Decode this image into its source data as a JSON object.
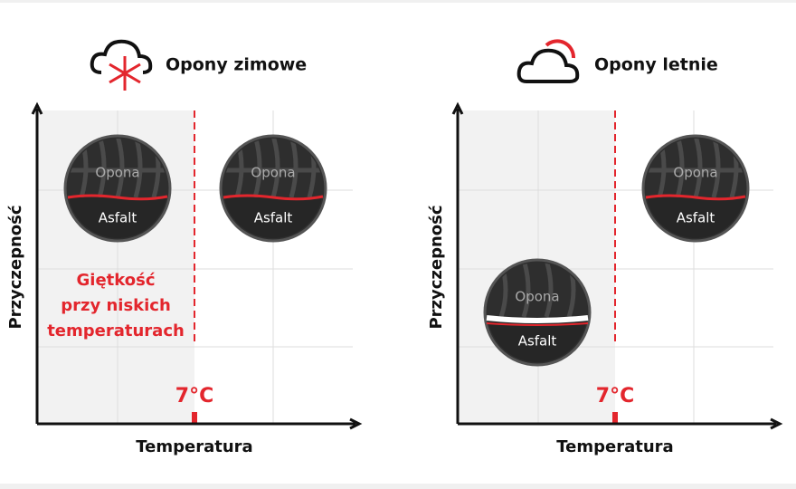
{
  "panels": [
    {
      "title": "Opony zimowe",
      "y_label": "Przyczepność",
      "x_label": "Temperatura",
      "threshold": "7°C",
      "note": [
        "Giętkość",
        "przy niskich",
        "temperaturach"
      ],
      "tires": [
        {
          "top": "Opona",
          "bottom": "Asfalt"
        },
        {
          "top": "Opona",
          "bottom": "Asfalt"
        }
      ]
    },
    {
      "title": "Opony letnie",
      "y_label": "Przyczepność",
      "x_label": "Temperatura",
      "threshold": "7°C",
      "tires": [
        {
          "top": "Opona",
          "bottom": "Asfalt"
        },
        {
          "top": "Opona",
          "bottom": "Asfalt"
        }
      ]
    }
  ]
}
